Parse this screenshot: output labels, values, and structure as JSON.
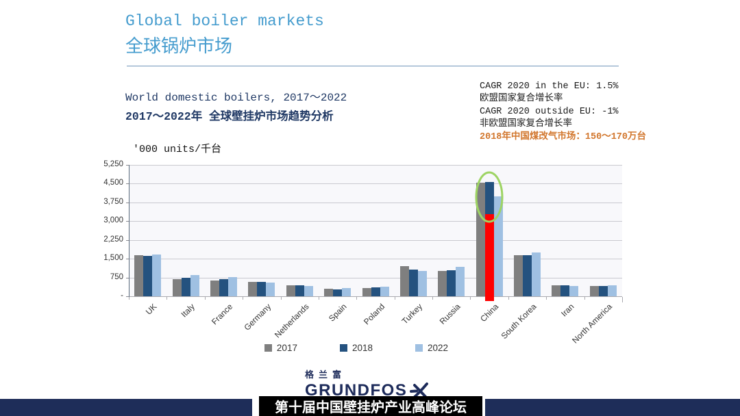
{
  "slide": {
    "title": {
      "en": "Global boiler markets",
      "zh": "全球锅炉市场",
      "color": "#459cce"
    },
    "subtitle": {
      "en": "World domestic boilers, 2017～2022",
      "zh": "2017～2022年 全球壁挂炉市场趋势分析",
      "color": "#1f3864"
    },
    "units_label": "'000 units/千台",
    "cagr": {
      "lines": [
        {
          "text": "CAGR 2020 in the EU: 1.5%",
          "color": "#1a1a1a"
        },
        {
          "text": "欧盟国家复合增长率",
          "color": "#1a1a1a"
        },
        {
          "text": "CAGR 2020 outside EU: -1%",
          "color": "#1a1a1a"
        },
        {
          "text": "非欧盟国家复合增长率",
          "color": "#1a1a1a"
        },
        {
          "text": "2018年中国煤改气市场：150～170万台",
          "color": "#d2772e"
        }
      ]
    }
  },
  "chart_data": {
    "type": "bar",
    "title": "World domestic boilers, 2017～2022",
    "ylabel": "'000 units/千台",
    "categories": [
      "UK",
      "Italy",
      "France",
      "Germany",
      "Netherlands",
      "Spain",
      "Poland",
      "Turkey",
      "Russia",
      "China",
      "South Korea",
      "Iran",
      "North America"
    ],
    "series": [
      {
        "name": "2017",
        "color": "#7f7f7f",
        "values": [
          1650,
          690,
          620,
          580,
          450,
          290,
          330,
          1200,
          1010,
          4550,
          1650,
          450,
          410
        ]
      },
      {
        "name": "2018",
        "color": "#24527f",
        "values": [
          1620,
          740,
          670,
          580,
          430,
          270,
          350,
          1060,
          1040,
          4570,
          1630,
          450,
          410
        ]
      },
      {
        "name": "2022",
        "color": "#9fc0e2",
        "values": [
          1680,
          860,
          770,
          550,
          400,
          320,
          390,
          1010,
          1170,
          4000,
          1760,
          420,
          430
        ]
      }
    ],
    "ylim": [
      0,
      5250
    ],
    "ytick_step": 750,
    "ytick_labels": [
      "-",
      "750",
      "1,500",
      "2,250",
      "3,000",
      "3,750",
      "4,500",
      "5,250"
    ],
    "grid": true,
    "legend_position": "bottom",
    "annotations": {
      "red_overlay_bar": {
        "category": "China",
        "series": "2018",
        "value_top": 3280,
        "extends_below_axis": true,
        "color": "#fe0000"
      },
      "green_ellipse": {
        "category": "China",
        "series": "2018",
        "color": "#9ed464"
      }
    }
  },
  "logo": {
    "zh": "格兰富",
    "en": "GRUNDFOS",
    "color": "#1d2b5a"
  },
  "footer": {
    "text": "第十届中国壁挂炉产业高峰论坛",
    "bar_color": "#1e2d59",
    "box_color": "#000000",
    "text_color": "#ffffff"
  }
}
